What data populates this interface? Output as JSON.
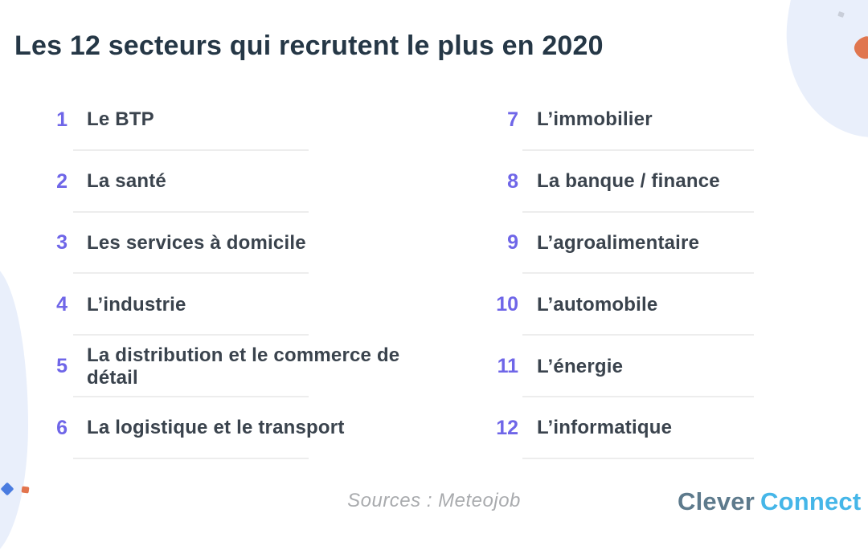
{
  "title": "Les 12 secteurs qui recrutent le plus en 2020",
  "sectors": [
    {
      "rank": "1",
      "label": "Le BTP"
    },
    {
      "rank": "2",
      "label": "La santé"
    },
    {
      "rank": "3",
      "label": "Les services à domicile"
    },
    {
      "rank": "4",
      "label": "L’industrie"
    },
    {
      "rank": "5",
      "label": "La distribution et le commerce de détail"
    },
    {
      "rank": "6",
      "label": "La logistique et le transport"
    },
    {
      "rank": "7",
      "label": "L’immobilier"
    },
    {
      "rank": "8",
      "label": "La banque / finance"
    },
    {
      "rank": "9",
      "label": "L’agroalimentaire"
    },
    {
      "rank": "10",
      "label": "L’automobile"
    },
    {
      "rank": "11",
      "label": "L’énergie"
    },
    {
      "rank": "12",
      "label": "L’informatique"
    }
  ],
  "footer": {
    "sources": "Sources : Meteojob",
    "brand_primary": "Clever",
    "brand_secondary": "Connect"
  },
  "colors": {
    "title_text": "#253746",
    "rank_accent": "#6f66e8",
    "item_text": "#3a434d",
    "divider": "#ededed",
    "blob": "#e9effb",
    "sources_text": "#a9abae",
    "brand_primary": "#5d7a8c",
    "brand_secondary": "#45b6e8",
    "accent_orange": "#e2744d",
    "accent_blue": "#4a7ce0"
  }
}
